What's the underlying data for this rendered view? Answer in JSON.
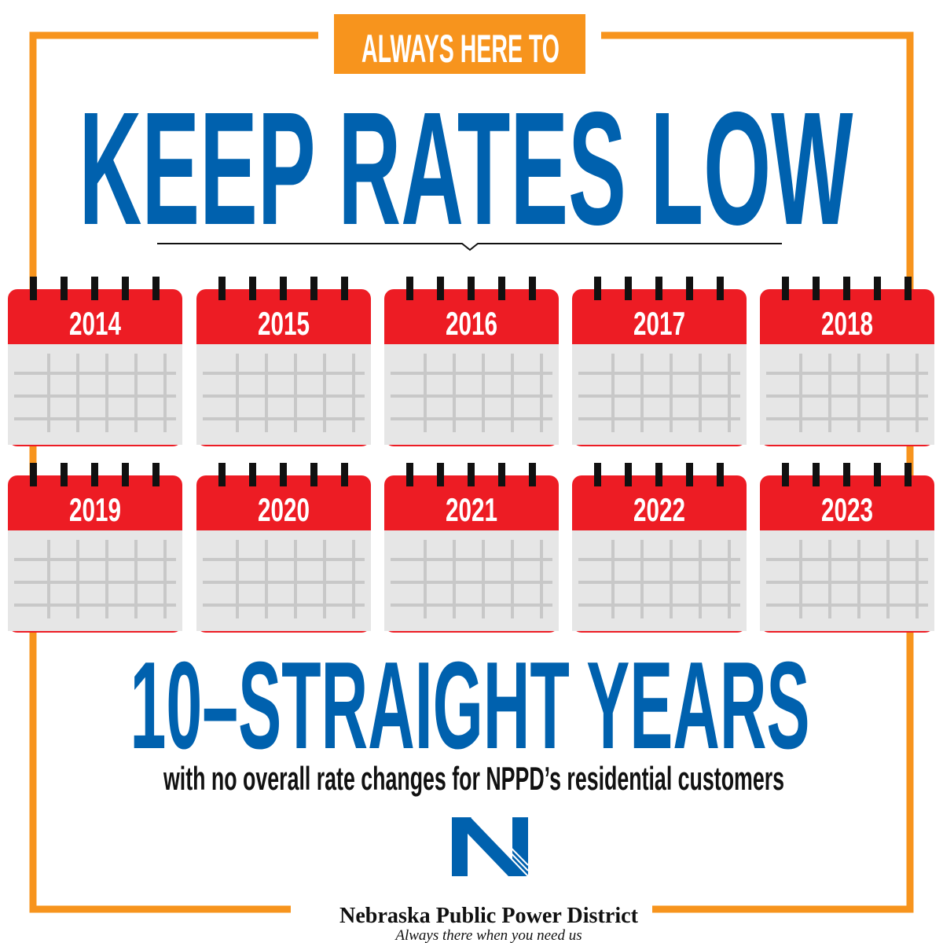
{
  "header": {
    "tag": "ALWAYS HERE TO",
    "title": "KEEP RATES LOW"
  },
  "calendars": [
    "2014",
    "2015",
    "2016",
    "2017",
    "2018",
    "2019",
    "2020",
    "2021",
    "2022",
    "2023"
  ],
  "headline": "10–STRAIGHT YEARS",
  "subtitle": "with no overall rate changes for NPPD’s residential customers",
  "logo": {
    "name": "Nebraska Public Power District",
    "tagline": "Always there when you need us"
  }
}
